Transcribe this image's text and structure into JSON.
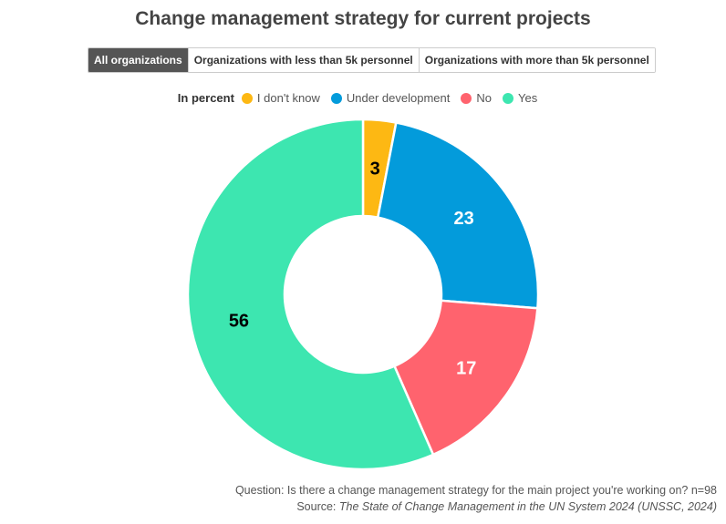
{
  "title": "Change management strategy for current projects",
  "tabs": [
    {
      "label": "All organizations",
      "active": true
    },
    {
      "label": "Organizations with less than 5k personnel",
      "active": false
    },
    {
      "label": "Organizations with more than 5k personnel",
      "active": false
    }
  ],
  "legend": {
    "title": "In percent",
    "items": [
      {
        "label": "I don't know",
        "color": "#FDB813"
      },
      {
        "label": "Under development",
        "color": "#039BDB"
      },
      {
        "label": "No",
        "color": "#FF636E"
      },
      {
        "label": "Yes",
        "color": "#3DE6B0"
      }
    ]
  },
  "chart_data": {
    "type": "pie",
    "donut": true,
    "unit": "percent",
    "categories": [
      "I don't know",
      "Under development",
      "No",
      "Yes"
    ],
    "values": [
      3,
      23,
      17,
      56
    ],
    "labels": [
      "3",
      "23",
      "17",
      "56"
    ],
    "colors": [
      "#FDB813",
      "#039BDB",
      "#FF636E",
      "#3DE6B0"
    ],
    "label_colors": [
      "#000000",
      "#ffffff",
      "#ffffff",
      "#000000"
    ],
    "legend_position": "top"
  },
  "footer": {
    "question": "Question: Is there a change management strategy for the main project you're working on? n=98",
    "source_prefix": "Source: ",
    "source_title": "The State of Change Management in the UN System 2024 (UNSSC, 2024)"
  }
}
